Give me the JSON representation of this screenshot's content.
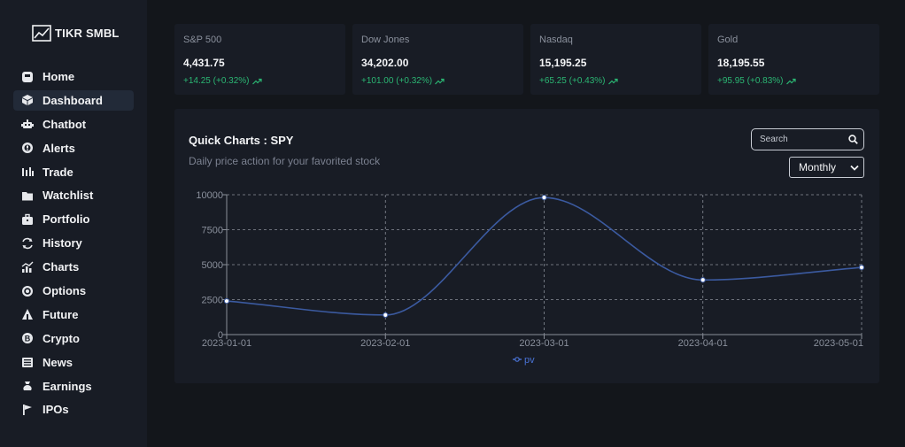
{
  "app": {
    "logo_text": "TIKR SMBL"
  },
  "sidebar": {
    "items": [
      {
        "label": "Home",
        "icon": "home-icon",
        "active": false
      },
      {
        "label": "Dashboard",
        "icon": "dashboard-icon",
        "active": true
      },
      {
        "label": "Chatbot",
        "icon": "chatbot-icon",
        "active": false
      },
      {
        "label": "Alerts",
        "icon": "alerts-icon",
        "active": false
      },
      {
        "label": "Trade",
        "icon": "trade-icon",
        "active": false
      },
      {
        "label": "Watchlist",
        "icon": "watchlist-icon",
        "active": false
      },
      {
        "label": "Portfolio",
        "icon": "portfolio-icon",
        "active": false
      },
      {
        "label": "History",
        "icon": "history-icon",
        "active": false
      },
      {
        "label": "Charts",
        "icon": "charts-icon",
        "active": false
      },
      {
        "label": "Options",
        "icon": "options-icon",
        "active": false
      },
      {
        "label": "Future",
        "icon": "future-icon",
        "active": false
      },
      {
        "label": "Crypto",
        "icon": "crypto-icon",
        "active": false
      },
      {
        "label": "News",
        "icon": "news-icon",
        "active": false
      },
      {
        "label": "Earnings",
        "icon": "earnings-icon",
        "active": false
      },
      {
        "label": "IPOs",
        "icon": "ipos-icon",
        "active": false
      }
    ]
  },
  "tickers": [
    {
      "name": "S&P 500",
      "price": "4,431.75",
      "change": "+14.25 (+0.32%)"
    },
    {
      "name": "Dow Jones",
      "price": "34,202.00",
      "change": "+101.00 (+0.32%)"
    },
    {
      "name": "Nasdaq",
      "price": "15,195.25",
      "change": "+65.25 (+0.43%)"
    },
    {
      "name": "Gold",
      "price": "18,195.55",
      "change": "+95.95 (+0.83%)"
    }
  ],
  "quick_charts": {
    "title": "Quick Charts : SPY",
    "subtitle": "Daily price action for your favorited stock",
    "search_placeholder": "Search",
    "interval_selected": "Monthly"
  },
  "colors": {
    "accent_line": "#3b5aa0",
    "positive": "#2bb673",
    "legend": "#4a73d6"
  },
  "chart_data": {
    "type": "line",
    "x": [
      "2023-01-01",
      "2023-02-01",
      "2023-03-01",
      "2023-04-01",
      "2023-05-01"
    ],
    "series": [
      {
        "name": "pv",
        "values": [
          2400,
          1400,
          9800,
          3908,
          4800
        ]
      }
    ],
    "yticks": [
      0,
      2500,
      5000,
      7500,
      10000
    ],
    "ylim": [
      0,
      10000
    ],
    "grid": true,
    "legend": "bottom-center"
  }
}
